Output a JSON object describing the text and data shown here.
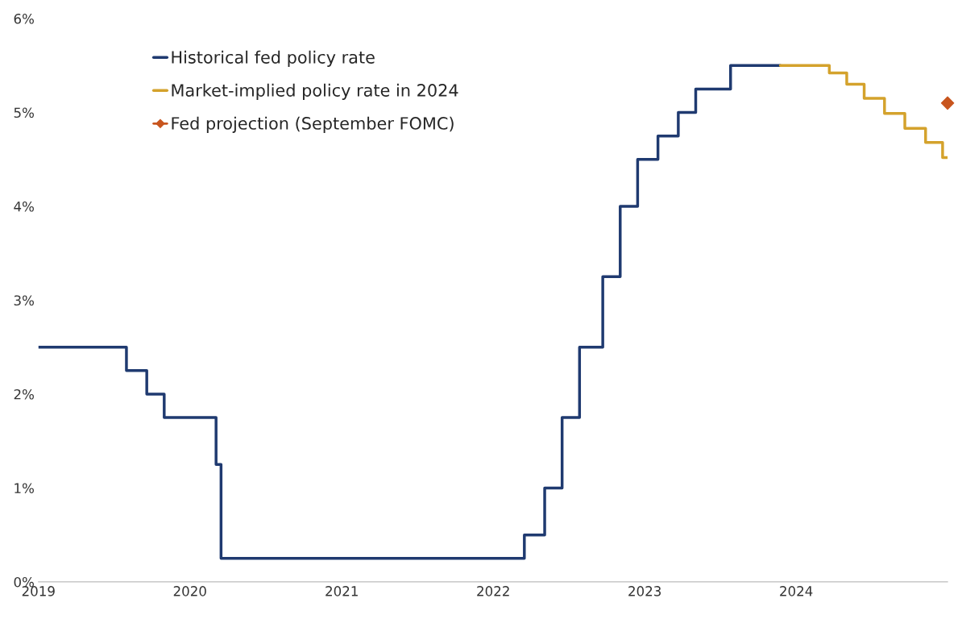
{
  "chart_data": {
    "type": "step",
    "xlim": [
      "2019-01-01",
      "2024-12-31"
    ],
    "xticks": [
      {
        "value": "2019-01-01",
        "label": "2019"
      },
      {
        "value": "2020-01-01",
        "label": "2020"
      },
      {
        "value": "2021-01-01",
        "label": "2021"
      },
      {
        "value": "2022-01-01",
        "label": "2022"
      },
      {
        "value": "2023-01-01",
        "label": "2023"
      },
      {
        "value": "2024-01-01",
        "label": "2024"
      }
    ],
    "ylim": [
      0,
      6
    ],
    "yticks": [
      {
        "value": 0,
        "label": "0%"
      },
      {
        "value": 1,
        "label": "1%"
      },
      {
        "value": 2,
        "label": "2%"
      },
      {
        "value": 3,
        "label": "3%"
      },
      {
        "value": 4,
        "label": "4%"
      },
      {
        "value": 5,
        "label": "5%"
      },
      {
        "value": 6,
        "label": "6%"
      }
    ],
    "grid": false,
    "legend": "top left",
    "series": [
      {
        "name": "Historical fed policy rate",
        "color": "#1f3a70",
        "marker": "none",
        "x": [
          "2019-01-01",
          "2019-08-01",
          "2019-09-19",
          "2019-10-31",
          "2020-03-04",
          "2020-03-16",
          "2022-03-17",
          "2022-05-05",
          "2022-06-16",
          "2022-07-28",
          "2022-09-22",
          "2022-11-03",
          "2022-12-15",
          "2023-02-02",
          "2023-03-23",
          "2023-05-04",
          "2023-07-27",
          "2023-11-24"
        ],
        "values": [
          2.5,
          2.25,
          2.0,
          1.75,
          1.25,
          0.25,
          0.5,
          1.0,
          1.75,
          2.5,
          3.25,
          4.0,
          4.5,
          4.75,
          5.0,
          5.25,
          5.5,
          5.5
        ]
      },
      {
        "name": "Market-implied policy rate in 2024",
        "color": "#d4a22c",
        "marker": "none",
        "x": [
          "2023-11-24",
          "2024-03-21",
          "2024-05-02",
          "2024-06-13",
          "2024-08-01",
          "2024-09-19",
          "2024-11-08",
          "2024-12-19",
          "2024-12-31"
        ],
        "values": [
          5.5,
          5.42,
          5.3,
          5.15,
          4.99,
          4.83,
          4.68,
          4.52,
          4.52
        ]
      },
      {
        "name": "Fed projection (September FOMC)",
        "type": "scatter",
        "color": "#c8551e",
        "marker": "diamond",
        "x": [
          "2024-12-31"
        ],
        "values": [
          5.1
        ]
      }
    ]
  }
}
